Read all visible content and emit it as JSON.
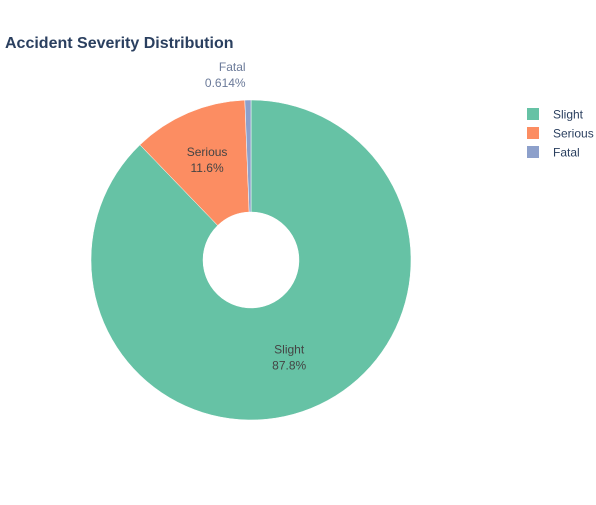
{
  "chart_data": {
    "type": "pie",
    "title": "Accident Severity Distribution",
    "hole": true,
    "slices": [
      {
        "label": "Slight",
        "percent": 87.8,
        "percent_label": "87.8%",
        "color": "#66c2a5"
      },
      {
        "label": "Serious",
        "percent": 11.6,
        "percent_label": "11.6%",
        "color": "#fc8d62"
      },
      {
        "label": "Fatal",
        "percent": 0.614,
        "percent_label": "0.614%",
        "color": "#8da0cb"
      }
    ],
    "legend": {
      "placement": "top-right"
    }
  }
}
